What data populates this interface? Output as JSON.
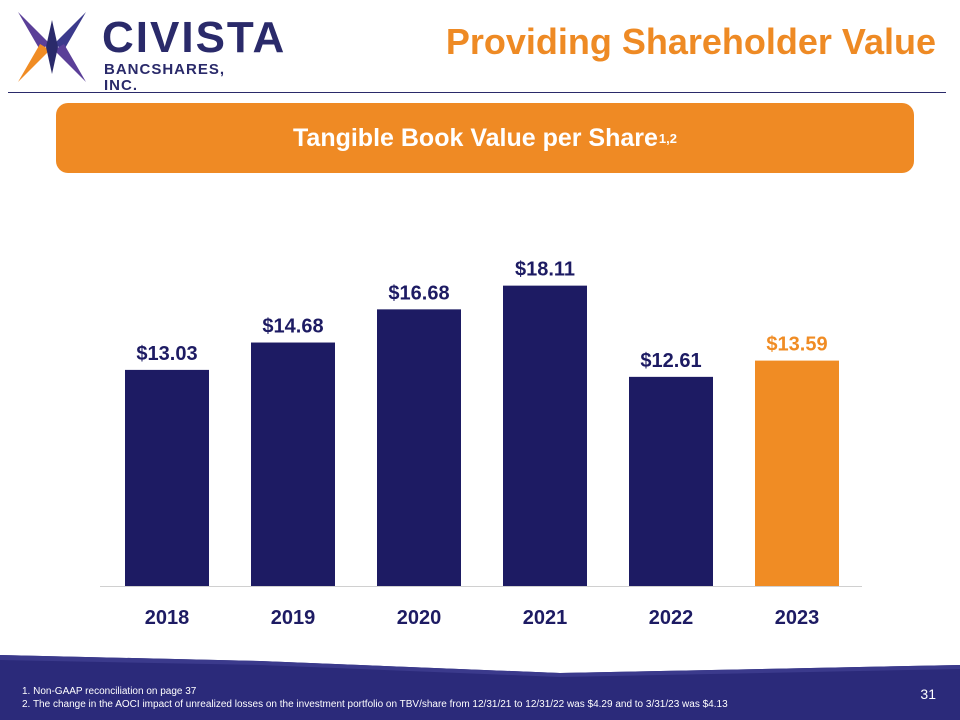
{
  "logo": {
    "name": "CIVISTA",
    "sub": "BANCSHARES, INC."
  },
  "header": {
    "title": "Providing Shareholder Value"
  },
  "banner": {
    "text": "Tangible Book Value per Share",
    "superscript": "1,2"
  },
  "chart_data": {
    "type": "bar",
    "categories": [
      "2018",
      "2019",
      "2020",
      "2021",
      "2022",
      "2023"
    ],
    "values": [
      13.03,
      14.68,
      16.68,
      18.11,
      12.61,
      13.59
    ],
    "labels": [
      "$13.03",
      "$14.68",
      "$16.68",
      "$18.11",
      "$12.61",
      "$13.59"
    ],
    "highlight_index": 5,
    "colors": {
      "default": "#1d1b63",
      "highlight": "#f08c24"
    },
    "ylim": [
      0,
      20.5
    ],
    "grid": false,
    "legend": "none"
  },
  "footnotes": [
    "1. Non-GAAP reconciliation on page 37",
    "2.  The change in the AOCI impact of unrealized losses on the investment portfolio on TBV/share from 12/31/21 to 12/31/22 was $4.29  and to 3/31/23 was $4.13"
  ],
  "page_number": "31",
  "colors": {
    "navy": "#1d1b63",
    "orange": "#ef8a24",
    "footer": "#2b2a7a"
  }
}
